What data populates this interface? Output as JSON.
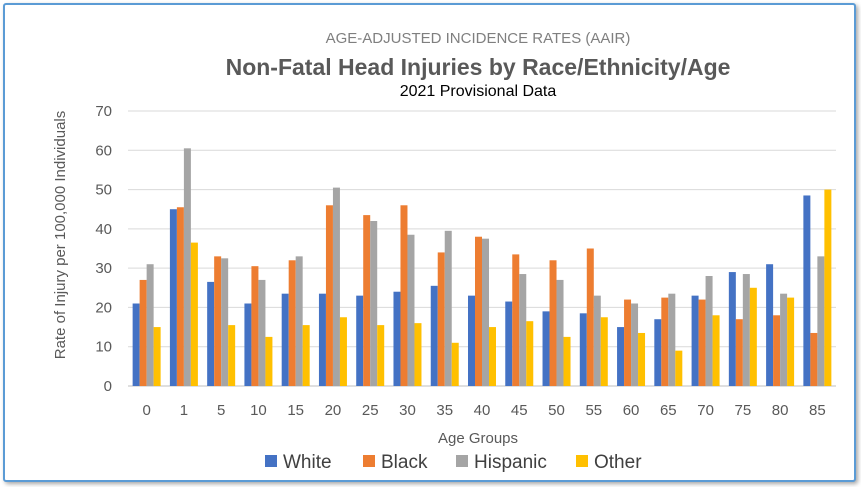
{
  "chart_data": {
    "type": "bar",
    "supertitle": "AGE-ADJUSTED INCIDENCE RATES (AAIR)",
    "title": "Non-Fatal Head Injuries by Race/Ethnicity/Age",
    "subtitle": "2021 Provisional Data",
    "xlabel": "Age Groups",
    "ylabel": "Rate of Injury per 100,000 Individuals",
    "ylim": [
      0,
      70
    ],
    "yticks": [
      "0",
      "10",
      "20",
      "30",
      "40",
      "50",
      "60",
      "70"
    ],
    "grid": true,
    "legend_position": "bottom",
    "categories": [
      "0",
      "1",
      "5",
      "10",
      "15",
      "20",
      "25",
      "30",
      "35",
      "40",
      "45",
      "50",
      "55",
      "60",
      "65",
      "70",
      "75",
      "80",
      "85"
    ],
    "series": [
      {
        "name": "White",
        "color": "#4472c4",
        "values": [
          21,
          45,
          26.5,
          21,
          23.5,
          23.5,
          23,
          24,
          25.5,
          23,
          21.5,
          19,
          18.5,
          15,
          17,
          23,
          29,
          31,
          48.5
        ]
      },
      {
        "name": "Black",
        "color": "#ed7d31",
        "values": [
          27,
          45.5,
          33,
          30.5,
          32,
          46,
          43.5,
          46,
          34,
          38,
          33.5,
          32,
          35,
          22,
          22.5,
          22,
          17,
          18,
          13.5
        ]
      },
      {
        "name": "Hispanic",
        "color": "#a5a5a5",
        "values": [
          31,
          60.5,
          32.5,
          27,
          33,
          50.5,
          42,
          38.5,
          39.5,
          37.5,
          28.5,
          27,
          23,
          21,
          23.5,
          28,
          28.5,
          23.5,
          33
        ]
      },
      {
        "name": "Other",
        "color": "#ffc000",
        "values": [
          15,
          36.5,
          15.5,
          12.5,
          15.5,
          17.5,
          15.5,
          16,
          11,
          15,
          16.5,
          12.5,
          17.5,
          13.5,
          9,
          18,
          25,
          22.5,
          50
        ]
      }
    ]
  }
}
